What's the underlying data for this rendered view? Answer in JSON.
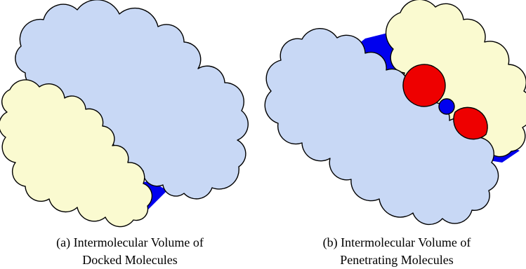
{
  "panels": [
    {
      "caption": [
        "(a) Intermolecular Volume of",
        "Docked Molecules"
      ]
    },
    {
      "caption": [
        "(b) Intermolecular Volume of",
        "Penetrating Molecules"
      ]
    }
  ]
}
